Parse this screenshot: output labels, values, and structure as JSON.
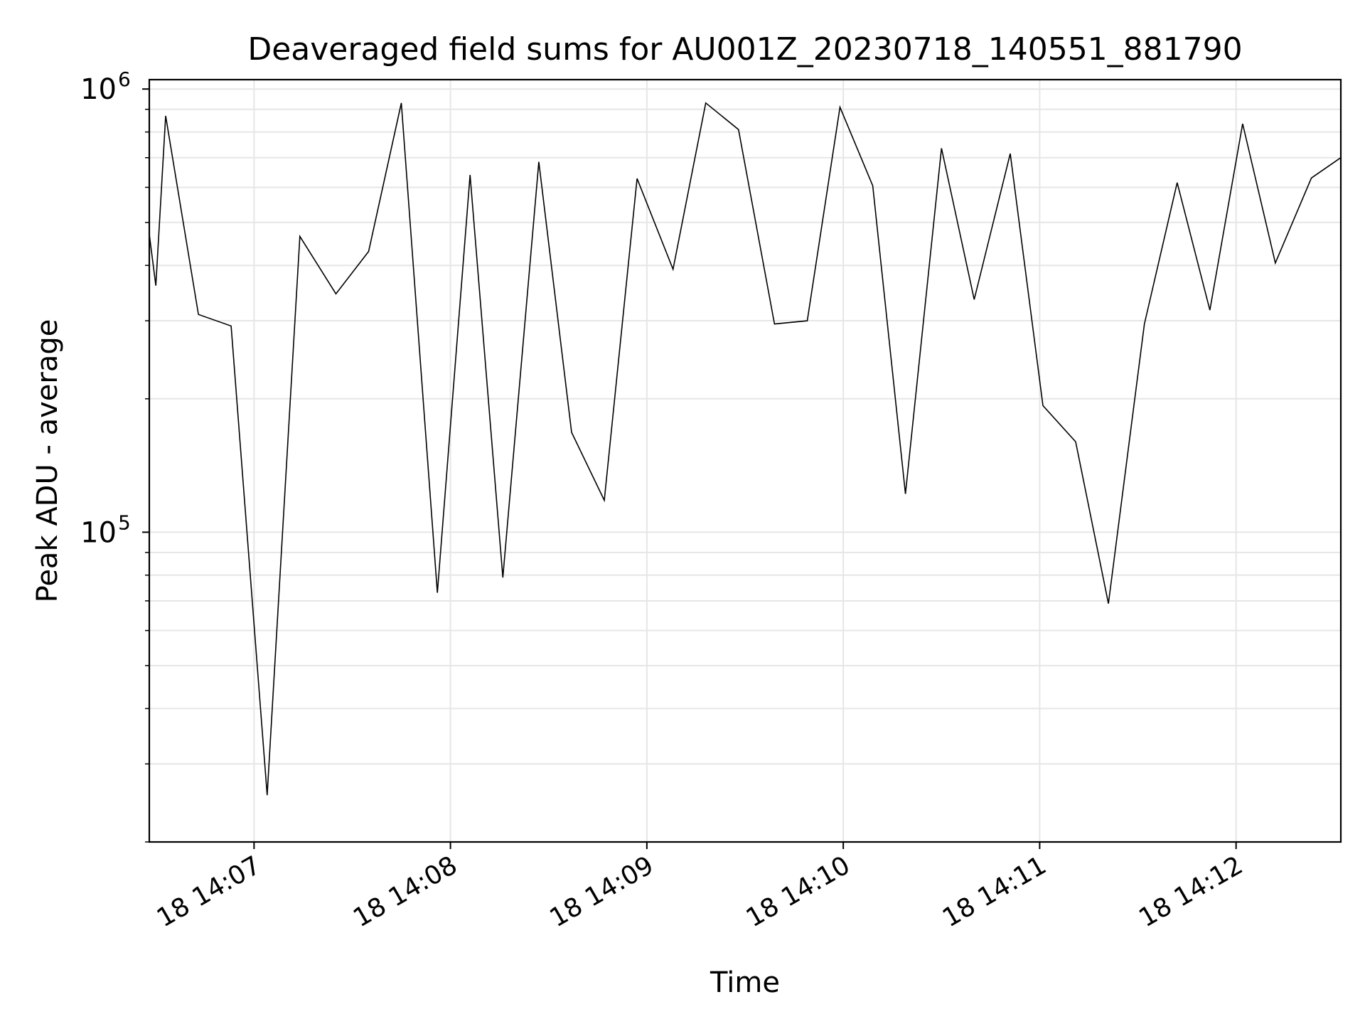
{
  "chart_data": {
    "type": "line",
    "title": "Deaveraged field sums for AU001Z_20230718_140551_881790",
    "xlabel": "Time",
    "ylabel": "Peak ADU - average",
    "yscale": "log",
    "ylim": [
      20000,
      1050000
    ],
    "xlim": [
      "2023-07-18 14:06:28",
      "2023-07-18 14:12:32"
    ],
    "grid": true,
    "legend": "none",
    "x_ticks": [
      "18 14:07",
      "18 14:08",
      "18 14:09",
      "18 14:10",
      "18 14:11",
      "18 14:12"
    ],
    "x_tick_values": [
      "2023-07-18 14:07:00",
      "2023-07-18 14:08:00",
      "2023-07-18 14:09:00",
      "2023-07-18 14:10:00",
      "2023-07-18 14:11:00",
      "2023-07-18 14:12:00"
    ],
    "y_ticks": [
      {
        "base": "10",
        "exp": "5",
        "value": 100000
      },
      {
        "base": "10",
        "exp": "6",
        "value": 1000000
      }
    ],
    "series": [
      {
        "color": "#000000",
        "x": [
          "2023-07-18 14:06:28",
          "2023-07-18 14:06:30",
          "2023-07-18 14:06:33",
          "2023-07-18 14:06:43",
          "2023-07-18 14:06:53",
          "2023-07-18 14:07:04",
          "2023-07-18 14:07:14",
          "2023-07-18 14:07:25",
          "2023-07-18 14:07:35",
          "2023-07-18 14:07:45",
          "2023-07-18 14:07:56",
          "2023-07-18 14:08:06",
          "2023-07-18 14:08:16",
          "2023-07-18 14:08:27",
          "2023-07-18 14:08:37",
          "2023-07-18 14:08:47",
          "2023-07-18 14:08:57",
          "2023-07-18 14:09:08",
          "2023-07-18 14:09:18",
          "2023-07-18 14:09:28",
          "2023-07-18 14:09:39",
          "2023-07-18 14:09:49",
          "2023-07-18 14:09:59",
          "2023-07-18 14:10:09",
          "2023-07-18 14:10:19",
          "2023-07-18 14:10:30",
          "2023-07-18 14:10:40",
          "2023-07-18 14:10:51",
          "2023-07-18 14:11:01",
          "2023-07-18 14:11:11",
          "2023-07-18 14:11:21",
          "2023-07-18 14:11:32",
          "2023-07-18 14:11:42",
          "2023-07-18 14:11:52",
          "2023-07-18 14:12:02",
          "2023-07-18 14:12:12",
          "2023-07-18 14:12:23",
          "2023-07-18 14:12:32"
        ],
        "values": [
          470000,
          360000,
          870000,
          310000,
          292000,
          25500,
          465000,
          345000,
          430000,
          930000,
          73000,
          640000,
          79000,
          685000,
          168000,
          118000,
          628000,
          392000,
          930000,
          810000,
          295000,
          300000,
          910000,
          605000,
          122000,
          735000,
          335000,
          715000,
          193000,
          160000,
          69000,
          295000,
          615000,
          317000,
          835000,
          405000,
          630000,
          700000
        ]
      }
    ]
  }
}
